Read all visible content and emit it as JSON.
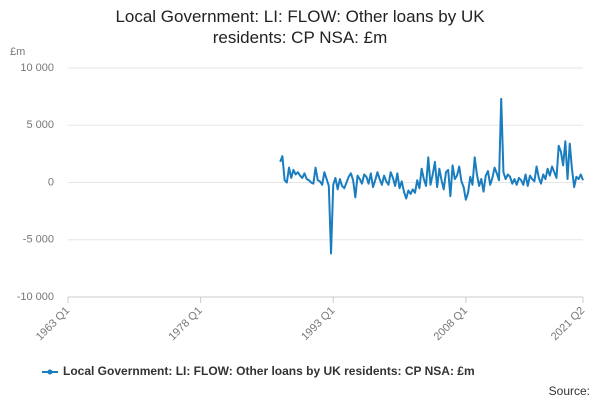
{
  "chart_data": {
    "type": "line",
    "title": "Local Government: LI: FLOW: Other loans by UK residents: CP NSA: £m",
    "y_label": "£m",
    "source": "Source:",
    "categories": [
      "1963 Q1",
      null,
      null,
      null,
      null,
      null,
      null,
      null,
      null,
      null,
      null,
      null,
      null,
      null,
      null,
      null,
      null,
      null,
      null,
      null,
      null,
      null,
      null,
      null,
      null,
      null,
      null,
      null,
      null,
      null,
      null,
      null,
      null,
      null,
      null,
      null,
      null,
      null,
      null,
      null,
      null,
      null,
      null,
      null,
      null,
      null,
      null,
      null,
      null,
      null,
      null,
      null,
      null,
      null,
      null,
      null,
      null,
      null,
      null,
      null,
      "1978 Q1",
      null,
      null,
      null,
      null,
      null,
      null,
      null,
      null,
      null,
      null,
      null,
      null,
      null,
      null,
      null,
      null,
      null,
      null,
      null,
      null,
      null,
      null,
      null,
      null,
      null,
      null,
      null,
      null,
      null,
      null,
      null,
      null,
      null,
      null,
      null,
      null,
      null,
      null,
      null,
      null,
      null,
      null,
      null,
      null,
      null,
      null,
      null,
      null,
      null,
      null,
      null,
      null,
      null,
      null,
      null,
      null,
      null,
      null,
      null,
      "1993 Q1",
      null,
      null,
      null,
      null,
      null,
      null,
      null,
      null,
      null,
      null,
      null,
      null,
      null,
      null,
      null,
      null,
      null,
      null,
      null,
      null,
      null,
      null,
      null,
      null,
      null,
      null,
      null,
      null,
      null,
      null,
      null,
      null,
      null,
      null,
      null,
      null,
      null,
      null,
      null,
      null,
      null,
      null,
      null,
      null,
      null,
      null,
      null,
      null,
      null,
      null,
      null,
      null,
      null,
      null,
      null,
      null,
      null,
      null,
      null,
      "2008 Q1",
      null,
      null,
      null,
      null,
      null,
      null,
      null,
      null,
      null,
      null,
      null,
      null,
      null,
      null,
      null,
      null,
      null,
      null,
      null,
      null,
      null,
      null,
      null,
      null,
      null,
      null,
      null,
      null,
      null,
      null,
      null,
      null,
      null,
      null,
      null,
      null,
      null,
      null,
      null,
      null,
      null,
      null,
      null,
      null,
      null,
      null,
      null,
      null,
      null,
      null,
      null,
      null,
      "2021 Q2"
    ],
    "series": [
      {
        "name": "Local Government: LI: FLOW: Other loans by UK residents: CP NSA: £m",
        "color": "#1a7dbf",
        "values": [
          null,
          null,
          null,
          null,
          null,
          null,
          null,
          null,
          null,
          null,
          null,
          null,
          null,
          null,
          null,
          null,
          null,
          null,
          null,
          null,
          null,
          null,
          null,
          null,
          null,
          null,
          null,
          null,
          null,
          null,
          null,
          null,
          null,
          null,
          null,
          null,
          null,
          null,
          null,
          null,
          null,
          null,
          null,
          null,
          null,
          null,
          null,
          null,
          null,
          null,
          null,
          null,
          null,
          null,
          null,
          null,
          null,
          null,
          null,
          null,
          null,
          null,
          null,
          null,
          null,
          null,
          null,
          null,
          null,
          null,
          null,
          null,
          null,
          null,
          null,
          null,
          null,
          null,
          null,
          null,
          null,
          null,
          null,
          null,
          null,
          null,
          null,
          null,
          null,
          null,
          null,
          null,
          null,
          null,
          null,
          null,
          1800,
          2300,
          200,
          0,
          1300,
          400,
          1100,
          700,
          900,
          600,
          400,
          800,
          300,
          200,
          0,
          -100,
          1300,
          200,
          100,
          -200,
          900,
          300,
          -300,
          -6200,
          -200,
          400,
          -600,
          300,
          -300,
          -500,
          0,
          500,
          800,
          200,
          -1300,
          600,
          300,
          -100,
          700,
          500,
          -100,
          800,
          -400,
          200,
          900,
          300,
          -200,
          600,
          100,
          -200,
          900,
          400,
          -300,
          800,
          -500,
          100,
          -800,
          -1400,
          -700,
          -1000,
          -600,
          -900,
          200,
          -500,
          1200,
          300,
          -300,
          2200,
          -200,
          700,
          1800,
          -400,
          1200,
          200,
          -600,
          900,
          1100,
          -1200,
          1500,
          300,
          600,
          1400,
          100,
          -400,
          -1500,
          -900,
          500,
          -200,
          2200,
          700,
          -300,
          300,
          -800,
          600,
          1000,
          -200,
          400,
          1300,
          800,
          200,
          7300,
          900,
          300,
          700,
          500,
          -100,
          300,
          -200,
          400,
          200,
          -200,
          700,
          -300,
          600,
          300,
          100,
          1400,
          400,
          -100,
          700,
          300,
          1200,
          600,
          1400,
          900,
          400,
          3200,
          2700,
          1500,
          3600,
          300,
          3400,
          1200,
          -400,
          500,
          300,
          700,
          200
        ]
      }
    ],
    "ylim": [
      -10000,
      10000
    ],
    "yticks": [
      {
        "value": -10000,
        "label": "-10 000"
      },
      {
        "value": -5000,
        "label": "-5 000"
      },
      0,
      {
        "value": 5000,
        "label": "5 000"
      },
      {
        "value": 10000,
        "label": "10 000"
      }
    ],
    "grid": true
  }
}
